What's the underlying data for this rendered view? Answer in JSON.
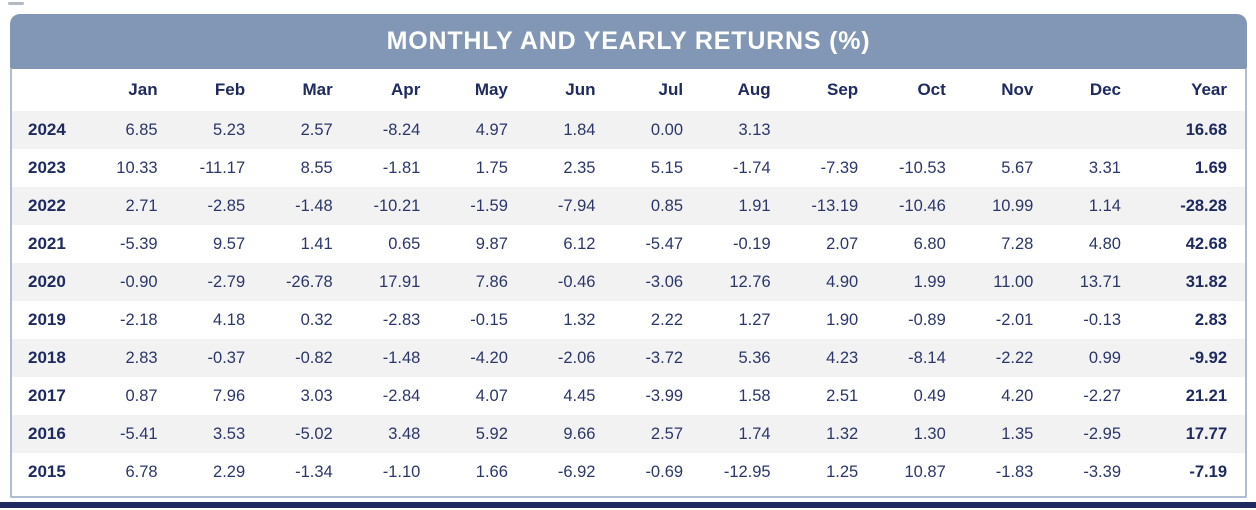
{
  "chart_data": {
    "type": "table",
    "title": "MONTHLY AND YEARLY RETURNS (%)",
    "row_header_label": "",
    "columns": [
      "Jan",
      "Feb",
      "Mar",
      "Apr",
      "May",
      "Jun",
      "Jul",
      "Aug",
      "Sep",
      "Oct",
      "Nov",
      "Dec",
      "Year"
    ],
    "rows": [
      {
        "year": "2024",
        "values": [
          "6.85",
          "5.23",
          "2.57",
          "-8.24",
          "4.97",
          "1.84",
          "0.00",
          "3.13",
          "",
          "",
          "",
          ""
        ],
        "total": "16.68"
      },
      {
        "year": "2023",
        "values": [
          "10.33",
          "-11.17",
          "8.55",
          "-1.81",
          "1.75",
          "2.35",
          "5.15",
          "-1.74",
          "-7.39",
          "-10.53",
          "5.67",
          "3.31"
        ],
        "total": "1.69"
      },
      {
        "year": "2022",
        "values": [
          "2.71",
          "-2.85",
          "-1.48",
          "-10.21",
          "-1.59",
          "-7.94",
          "0.85",
          "1.91",
          "-13.19",
          "-10.46",
          "10.99",
          "1.14"
        ],
        "total": "-28.28"
      },
      {
        "year": "2021",
        "values": [
          "-5.39",
          "9.57",
          "1.41",
          "0.65",
          "9.87",
          "6.12",
          "-5.47",
          "-0.19",
          "2.07",
          "6.80",
          "7.28",
          "4.80"
        ],
        "total": "42.68"
      },
      {
        "year": "2020",
        "values": [
          "-0.90",
          "-2.79",
          "-26.78",
          "17.91",
          "7.86",
          "-0.46",
          "-3.06",
          "12.76",
          "4.90",
          "1.99",
          "11.00",
          "13.71"
        ],
        "total": "31.82"
      },
      {
        "year": "2019",
        "values": [
          "-2.18",
          "4.18",
          "0.32",
          "-2.83",
          "-0.15",
          "1.32",
          "2.22",
          "1.27",
          "1.90",
          "-0.89",
          "-2.01",
          "-0.13"
        ],
        "total": "2.83"
      },
      {
        "year": "2018",
        "values": [
          "2.83",
          "-0.37",
          "-0.82",
          "-1.48",
          "-4.20",
          "-2.06",
          "-3.72",
          "5.36",
          "4.23",
          "-8.14",
          "-2.22",
          "0.99"
        ],
        "total": "-9.92"
      },
      {
        "year": "2017",
        "values": [
          "0.87",
          "7.96",
          "3.03",
          "-2.84",
          "4.07",
          "4.45",
          "-3.99",
          "1.58",
          "2.51",
          "0.49",
          "4.20",
          "-2.27"
        ],
        "total": "21.21"
      },
      {
        "year": "2016",
        "values": [
          "-5.41",
          "3.53",
          "-5.02",
          "3.48",
          "5.92",
          "9.66",
          "2.57",
          "1.74",
          "1.32",
          "1.30",
          "1.35",
          "-2.95"
        ],
        "total": "17.77"
      },
      {
        "year": "2015",
        "values": [
          "6.78",
          "2.29",
          "-1.34",
          "-1.10",
          "1.66",
          "-6.92",
          "-0.69",
          "-12.95",
          "1.25",
          "10.87",
          "-1.83",
          "-3.39"
        ],
        "total": "-7.19"
      }
    ]
  },
  "colors": {
    "header_bar": "#8197B5",
    "title_text": "#FFFFFF",
    "heading_text": "#1E2A60",
    "value_text": "#2B366B",
    "stripe": "#F2F2F2",
    "table_border": "#AEBDD2",
    "bottom_line": "#1E2A60"
  }
}
